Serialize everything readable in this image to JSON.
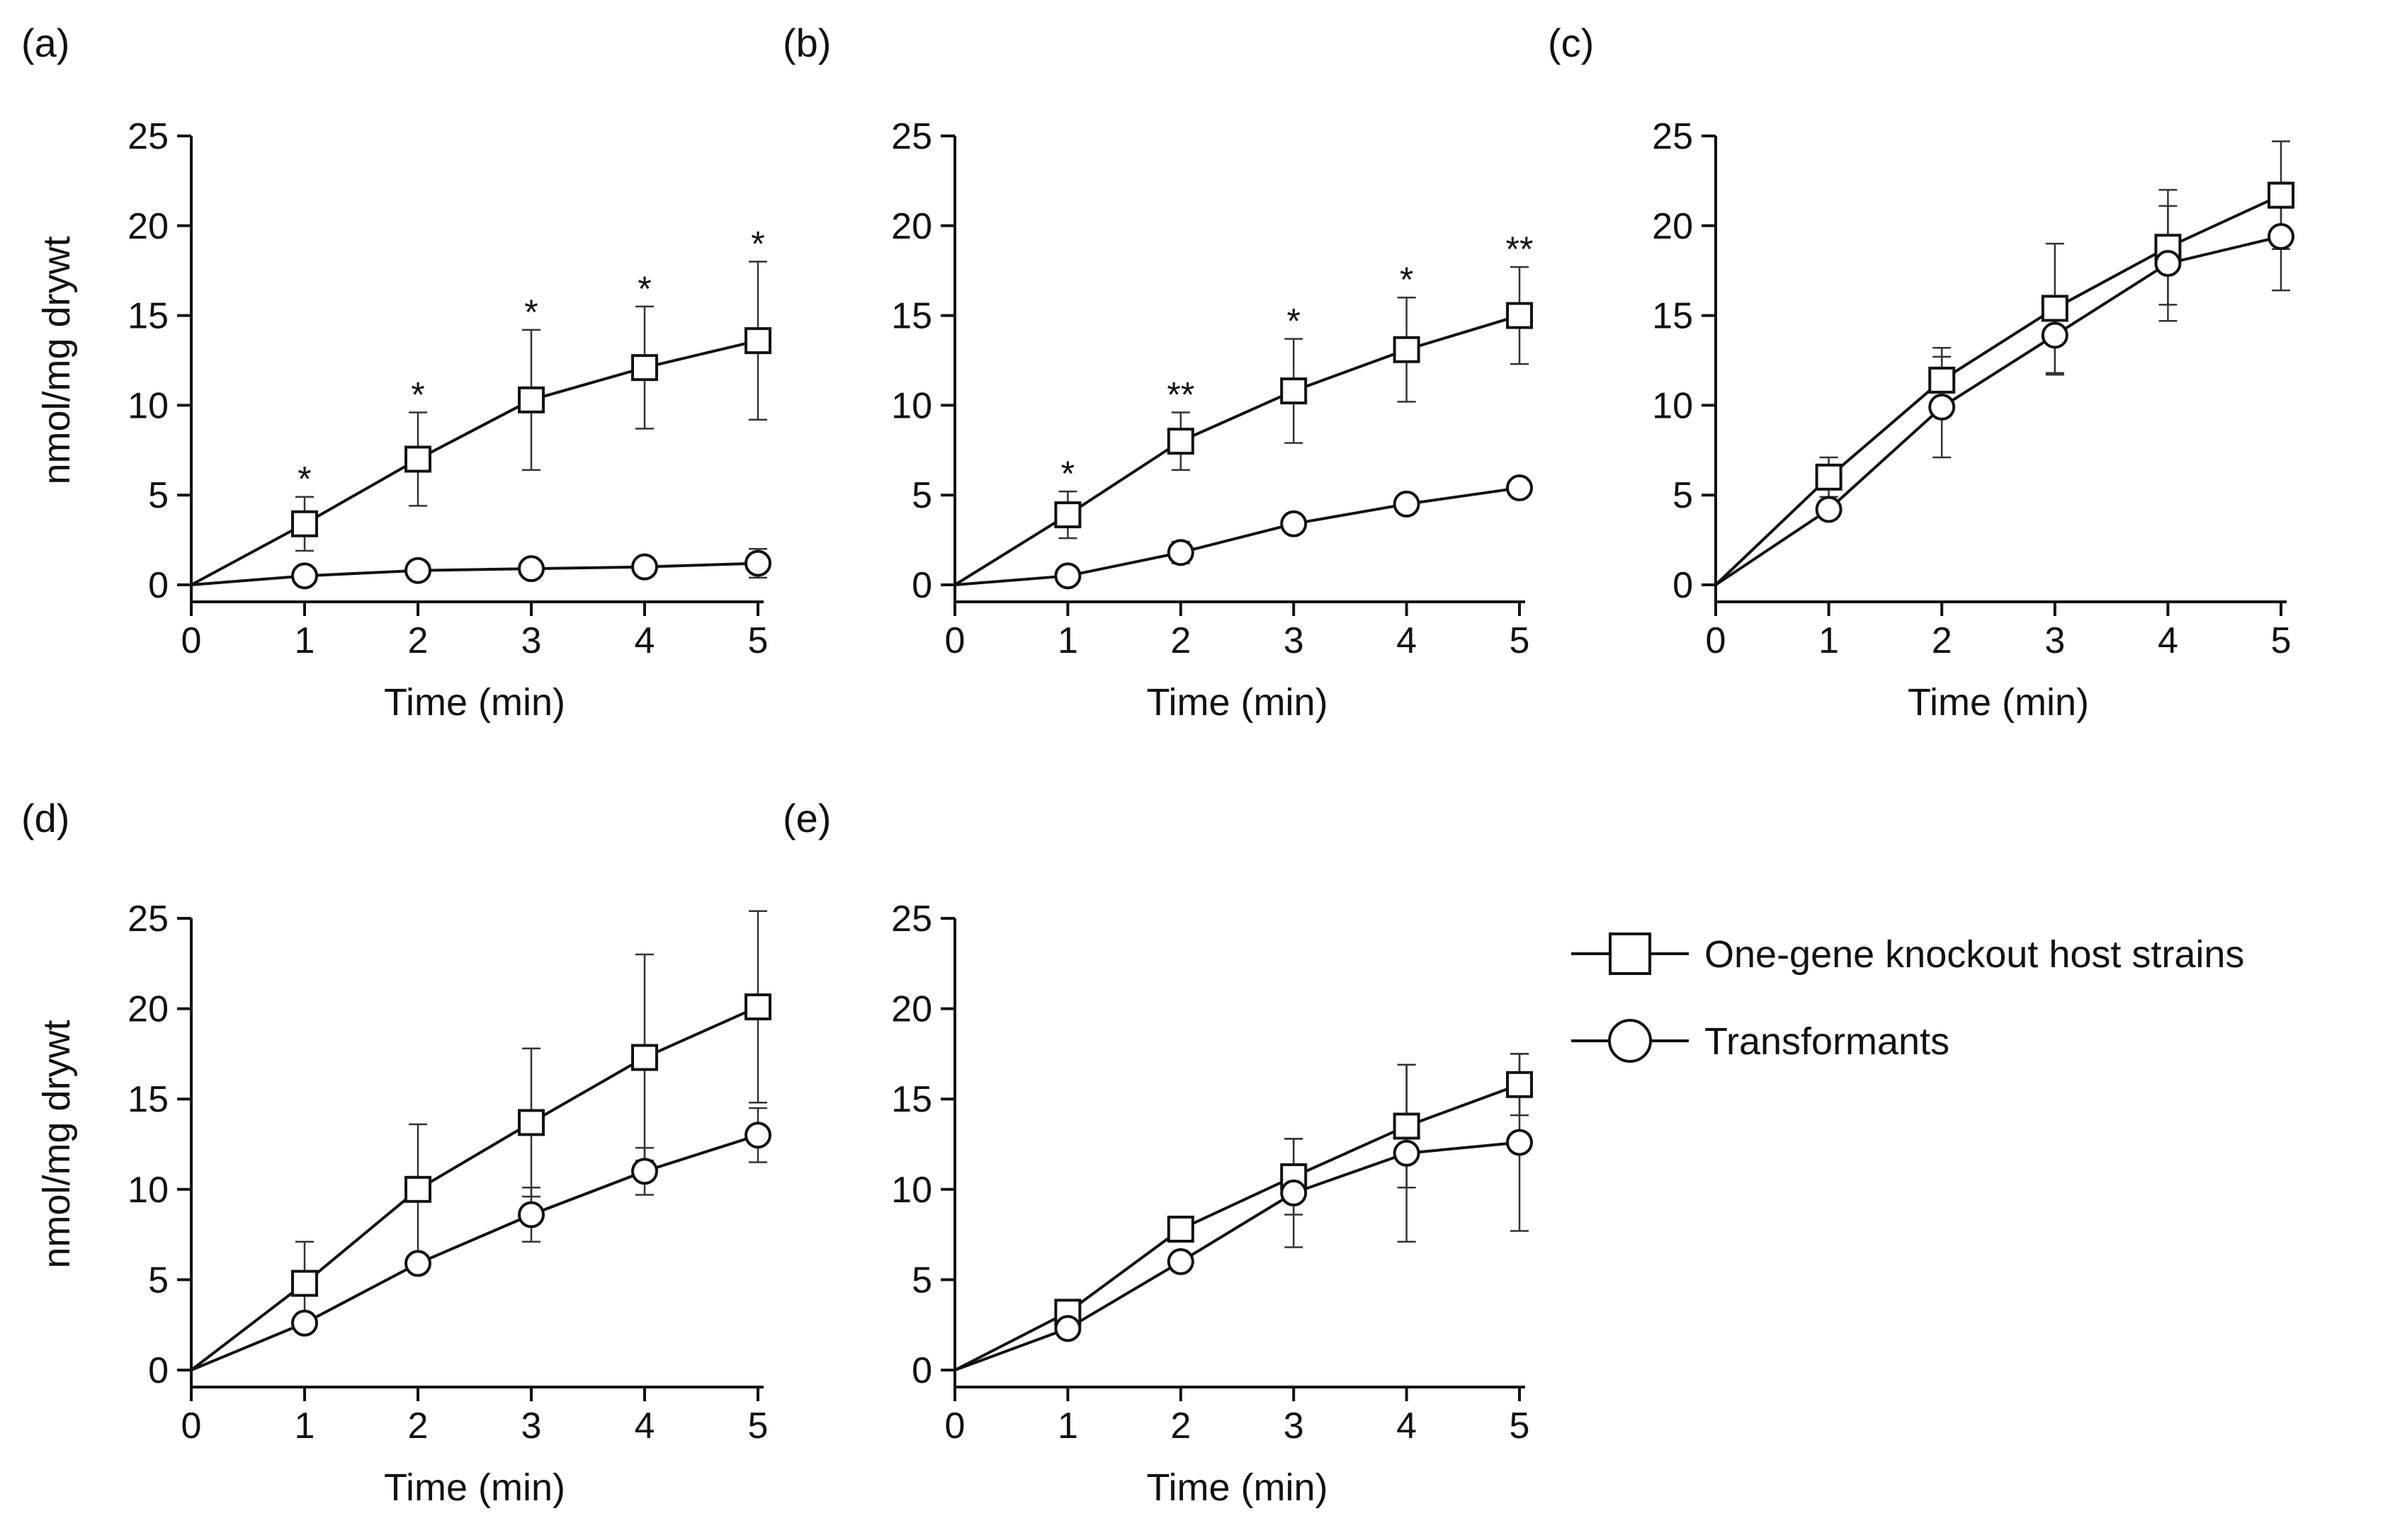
{
  "legend": {
    "position": "right",
    "entries": [
      {
        "name": "One-gene knockout host strains",
        "marker": "square"
      },
      {
        "name": "Transformants",
        "marker": "circle"
      }
    ]
  },
  "chart_data": [
    {
      "type": "line",
      "panel_label": "(a)",
      "xlabel": "Time (min)",
      "ylabel": "nmol/mg drywt",
      "x": [
        0,
        1,
        2,
        3,
        4,
        5
      ],
      "xlim": [
        0,
        5
      ],
      "ylim": [
        0,
        25
      ],
      "xticks": [
        0,
        1,
        2,
        3,
        4,
        5
      ],
      "yticks": [
        0,
        5,
        10,
        15,
        20,
        25
      ],
      "series": [
        {
          "name": "One-gene knockout host strains",
          "values": [
            0,
            3.4,
            7.0,
            10.3,
            12.1,
            13.6
          ],
          "errors": [
            0,
            1.5,
            2.6,
            3.9,
            3.4,
            4.4
          ]
        },
        {
          "name": "Transformants",
          "values": [
            0,
            0.5,
            0.8,
            0.9,
            1.0,
            1.2
          ],
          "errors": [
            0,
            0.2,
            0.3,
            0.3,
            0.5,
            0.8
          ]
        }
      ],
      "annotations": [
        "",
        "*",
        "*",
        "*",
        "*",
        "*"
      ]
    },
    {
      "type": "line",
      "panel_label": "(b)",
      "xlabel": "Time (min)",
      "ylabel": "",
      "x": [
        0,
        1,
        2,
        3,
        4,
        5
      ],
      "xlim": [
        0,
        5
      ],
      "ylim": [
        0,
        25
      ],
      "xticks": [
        0,
        1,
        2,
        3,
        4,
        5
      ],
      "yticks": [
        0,
        5,
        10,
        15,
        20,
        25
      ],
      "series": [
        {
          "name": "One-gene knockout host strains",
          "values": [
            0,
            3.9,
            8.0,
            10.8,
            13.1,
            15.0
          ],
          "errors": [
            0,
            1.3,
            1.6,
            2.9,
            2.9,
            2.7
          ]
        },
        {
          "name": "Transformants",
          "values": [
            0,
            0.5,
            1.8,
            3.4,
            4.5,
            5.4
          ],
          "errors": [
            0,
            0.2,
            0.6,
            0.3,
            0.3,
            0.3
          ]
        }
      ],
      "annotations": [
        "",
        "*",
        "**",
        "*",
        "*",
        "**"
      ]
    },
    {
      "type": "line",
      "panel_label": "(c)",
      "xlabel": "Time (min)",
      "ylabel": "",
      "x": [
        0,
        1,
        2,
        3,
        4,
        5
      ],
      "xlim": [
        0,
        5
      ],
      "ylim": [
        0,
        25
      ],
      "xticks": [
        0,
        1,
        2,
        3,
        4,
        5
      ],
      "yticks": [
        0,
        5,
        10,
        15,
        20,
        25
      ],
      "series": [
        {
          "name": "One-gene knockout host strains",
          "values": [
            0,
            6.0,
            11.4,
            15.4,
            18.8,
            21.7
          ],
          "errors": [
            0,
            1.1,
            1.8,
            3.6,
            3.2,
            3.0
          ]
        },
        {
          "name": "Transformants",
          "values": [
            0,
            4.2,
            9.9,
            13.9,
            17.9,
            19.4
          ],
          "errors": [
            0,
            0.5,
            2.8,
            2.2,
            3.2,
            3.0
          ]
        }
      ],
      "annotations": [
        "",
        "",
        "",
        "",
        "",
        ""
      ]
    },
    {
      "type": "line",
      "panel_label": "(d)",
      "xlabel": "Time (min)",
      "ylabel": "nmol/mg drywt",
      "x": [
        0,
        1,
        2,
        3,
        4,
        5
      ],
      "xlim": [
        0,
        5
      ],
      "ylim": [
        0,
        25
      ],
      "xticks": [
        0,
        1,
        2,
        3,
        4,
        5
      ],
      "yticks": [
        0,
        5,
        10,
        15,
        20,
        25
      ],
      "series": [
        {
          "name": "One-gene knockout host strains",
          "values": [
            0,
            4.8,
            10.0,
            13.7,
            17.3,
            20.1
          ],
          "errors": [
            0,
            2.3,
            3.6,
            4.1,
            5.7,
            5.3
          ]
        },
        {
          "name": "Transformants",
          "values": [
            0,
            2.6,
            5.9,
            8.6,
            11.0,
            13.0
          ],
          "errors": [
            0,
            0.3,
            0.4,
            1.5,
            1.3,
            1.5
          ]
        }
      ],
      "annotations": [
        "",
        "",
        "",
        "",
        "",
        ""
      ]
    },
    {
      "type": "line",
      "panel_label": "(e)",
      "xlabel": "Time (min)",
      "ylabel": "",
      "x": [
        0,
        1,
        2,
        3,
        4,
        5
      ],
      "xlim": [
        0,
        5
      ],
      "ylim": [
        0,
        25
      ],
      "xticks": [
        0,
        1,
        2,
        3,
        4,
        5
      ],
      "yticks": [
        0,
        5,
        10,
        15,
        20,
        25
      ],
      "series": [
        {
          "name": "One-gene knockout host strains",
          "values": [
            0,
            3.2,
            7.8,
            10.7,
            13.5,
            15.8
          ],
          "errors": [
            0,
            0.4,
            0.5,
            2.1,
            3.4,
            1.7
          ]
        },
        {
          "name": "Transformants",
          "values": [
            0,
            2.3,
            6.0,
            9.8,
            12.0,
            12.6
          ],
          "errors": [
            0,
            0.4,
            0.5,
            3.0,
            4.9,
            4.9
          ]
        }
      ],
      "annotations": [
        "",
        "",
        "",
        "",
        "",
        ""
      ]
    }
  ]
}
